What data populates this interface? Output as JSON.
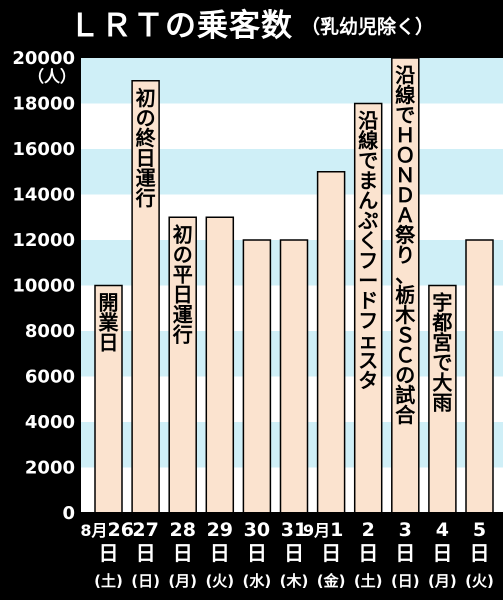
{
  "header": {
    "title": "ＬＲＴの乗客数",
    "subtitle": "（乳幼児除く）"
  },
  "colors": {
    "background": "#000000",
    "plot_area": "#ffffff",
    "stripe": "#cfeff7",
    "bar_fill": "#fbe3cf",
    "bar_stroke": "#000000"
  },
  "chart_data": {
    "type": "bar",
    "title": "ＬＲＴの乗客数",
    "subtitle": "（乳幼児除く）",
    "ylabel": "（人）",
    "xlabel": "",
    "ylim": [
      0,
      20000
    ],
    "yticks": [
      0,
      2000,
      4000,
      6000,
      8000,
      10000,
      12000,
      14000,
      16000,
      18000,
      20000
    ],
    "grid": "horizontal stripes",
    "categories": [
      {
        "month": "8月",
        "day": "26",
        "dow": "(土)"
      },
      {
        "month": "",
        "day": "27",
        "dow": "(日)"
      },
      {
        "month": "",
        "day": "28",
        "dow": "(月)"
      },
      {
        "month": "",
        "day": "29",
        "dow": "(火)"
      },
      {
        "month": "",
        "day": "30",
        "dow": "(水)"
      },
      {
        "month": "",
        "day": "31",
        "dow": "(木)"
      },
      {
        "month": "9月",
        "day": "1",
        "dow": "(金)"
      },
      {
        "month": "",
        "day": "2",
        "dow": "(土)"
      },
      {
        "month": "",
        "day": "3",
        "dow": "(日)"
      },
      {
        "month": "",
        "day": "4",
        "dow": "(月)"
      },
      {
        "month": "",
        "day": "5",
        "dow": "(火)"
      }
    ],
    "day_suffix": "日",
    "values": [
      10000,
      19000,
      13000,
      13000,
      12000,
      12000,
      15000,
      18000,
      20000,
      10000,
      12000
    ],
    "annotations": [
      "開業日",
      "初の終日運行",
      "初の平日運行",
      "",
      "",
      "",
      "",
      "沿線でまんぷくフードフェスタ",
      "沿線でＨＯＮＤＡ祭り、栃木ＳＣの試合",
      "宇都宮で大雨",
      ""
    ]
  }
}
